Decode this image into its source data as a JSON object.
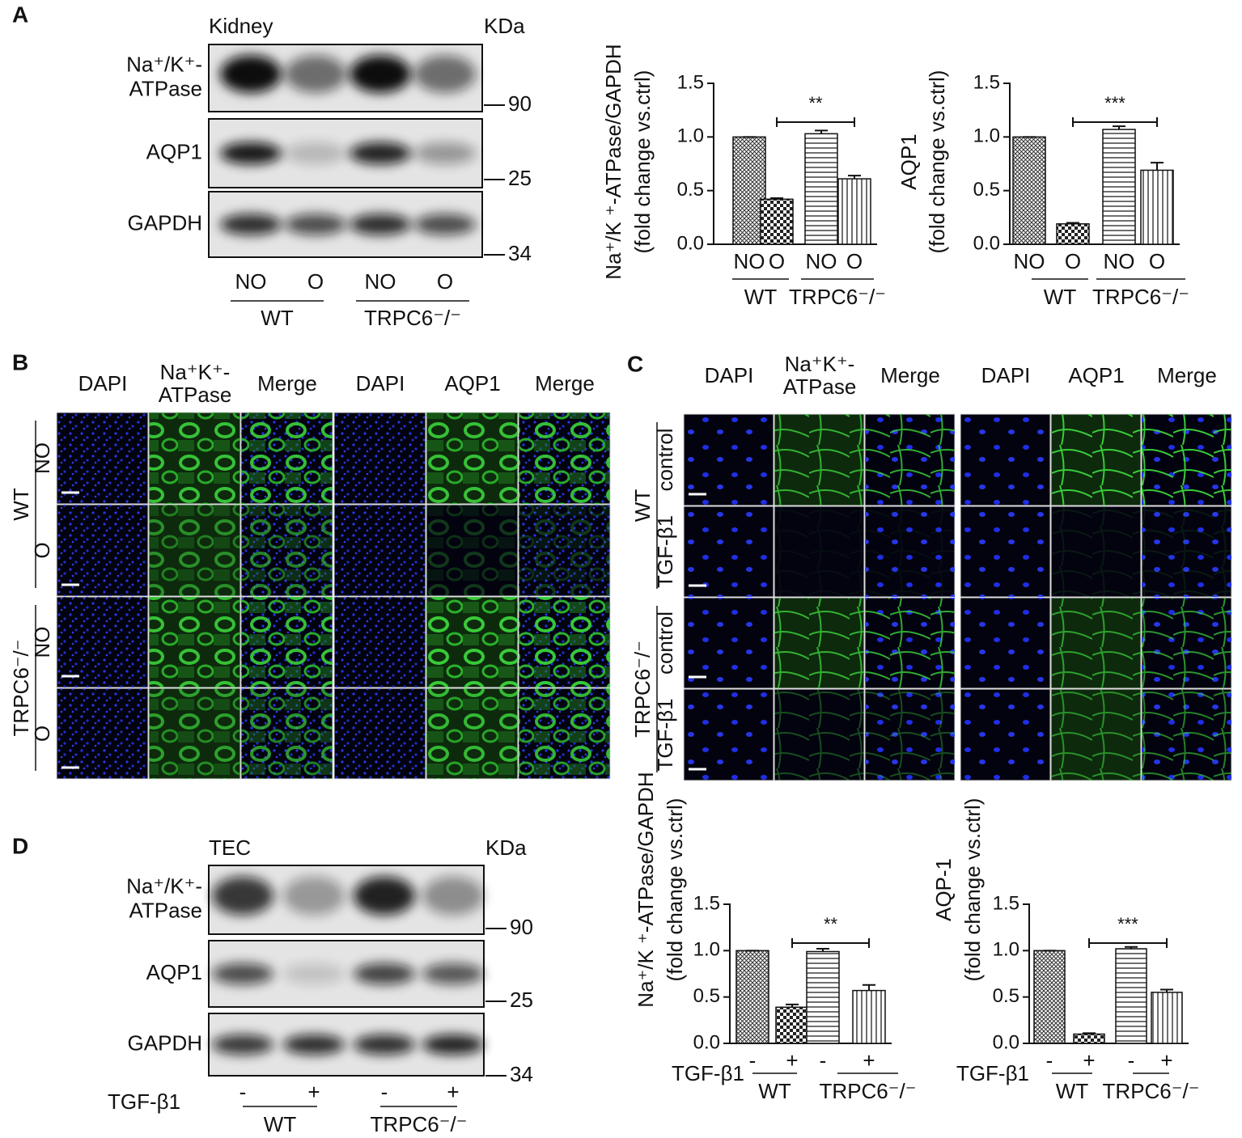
{
  "panel_labels": [
    "A",
    "B",
    "C",
    "D"
  ],
  "blot_a": {
    "sample": "Kidney",
    "unit": "KDa",
    "rows": [
      [
        "Na⁺/K⁺-",
        "ATPase"
      ],
      [
        "AQP1"
      ],
      [
        "GAPDH"
      ]
    ],
    "markers": [
      90,
      25,
      34
    ],
    "lanes": [
      "NO",
      "O",
      "NO",
      "O"
    ],
    "groups": [
      "WT",
      "TRPC6⁻/⁻"
    ]
  },
  "if_b": {
    "columns": [
      "DAPI",
      [
        "Na⁺K⁺-",
        "ATPase"
      ],
      "Merge",
      "DAPI",
      "AQP1",
      "Merge"
    ],
    "groups": [
      {
        "name": "WT",
        "rows": [
          "NO",
          "O"
        ]
      },
      {
        "name": "TRPC6⁻/⁻",
        "rows": [
          "NO",
          "O"
        ]
      }
    ]
  },
  "if_c": {
    "columns": [
      "DAPI",
      [
        "Na⁺K⁺-",
        "ATPase"
      ],
      "Merge",
      "DAPI",
      "AQP1",
      "Merge"
    ],
    "groups": [
      {
        "name": "WT",
        "rows": [
          "control",
          "TGF-β1"
        ]
      },
      {
        "name": "TRPC6⁻/⁻",
        "rows": [
          "control",
          "TGF-β1"
        ]
      }
    ]
  },
  "blot_d": {
    "sample": "TEC",
    "unit": "KDa",
    "rows": [
      [
        "Na⁺/K⁺-",
        "ATPase"
      ],
      [
        "AQP1"
      ],
      [
        "GAPDH"
      ]
    ],
    "markers": [
      90,
      25,
      34
    ],
    "treatment": "TGF-β1",
    "lanes": [
      "-",
      "+",
      "-",
      "+"
    ],
    "groups": [
      "WT",
      "TRPC6⁻/⁻"
    ]
  },
  "chart_data": [
    {
      "type": "bar",
      "ylabel": [
        "Na⁺/K ⁺-ATPase/GAPDH",
        "(fold change vs.ctrl)"
      ],
      "categories": [
        "NO",
        "O",
        "NO",
        "O"
      ],
      "groups": [
        "WT",
        "TRPC6⁻/⁻"
      ],
      "values": [
        1.0,
        0.42,
        1.03,
        0.61
      ],
      "errors": [
        0,
        0.01,
        0.03,
        0.03
      ],
      "significance": "**",
      "ylim": [
        0,
        1.5
      ],
      "yticks": [
        {
          "value": 0,
          "label": "0.0"
        },
        0.5,
        {
          "value": 1,
          "label": "1.0"
        },
        1.5
      ]
    },
    {
      "type": "bar",
      "ylabel": [
        "AQP1",
        "(fold change vs.ctrl)"
      ],
      "categories": [
        "NO",
        "O",
        "NO",
        "O"
      ],
      "groups": [
        "WT",
        "TRPC6⁻/⁻"
      ],
      "values": [
        1.0,
        0.19,
        1.07,
        0.69
      ],
      "errors": [
        0,
        0.01,
        0.03,
        0.07
      ],
      "significance": "***",
      "ylim": [
        0,
        1.5
      ],
      "yticks": [
        {
          "value": 0,
          "label": "0.0"
        },
        0.5,
        {
          "value": 1,
          "label": "1.0"
        },
        1.5
      ]
    },
    {
      "type": "bar",
      "ylabel": [
        "Na⁺/K ⁺-ATPase/GAPDH",
        "(fold change vs.ctrl)"
      ],
      "treatment": "TGF-β1",
      "categories": [
        "-",
        "+",
        "-",
        "+"
      ],
      "groups": [
        "WT",
        "TRPC6⁻/⁻"
      ],
      "values": [
        1.0,
        0.39,
        0.99,
        0.57
      ],
      "errors": [
        0,
        0.03,
        0.03,
        0.06
      ],
      "significance": "**",
      "ylim": [
        0,
        1.5
      ],
      "yticks": [
        {
          "value": 0,
          "label": "0.0"
        },
        0.5,
        {
          "value": 1,
          "label": "1.0"
        },
        1.5
      ]
    },
    {
      "type": "bar",
      "ylabel": [
        "AQP-1",
        "(fold change vs.ctrl)"
      ],
      "treatment": "TGF-β1",
      "categories": [
        "-",
        "+",
        "-",
        "+"
      ],
      "groups": [
        "WT",
        "TRPC6⁻/⁻"
      ],
      "values": [
        1.0,
        0.1,
        1.02,
        0.55
      ],
      "errors": [
        0,
        0.01,
        0.02,
        0.03
      ],
      "significance": "***",
      "ylim": [
        0,
        1.5
      ],
      "yticks": [
        {
          "value": 0,
          "label": "0.0"
        },
        0.5,
        {
          "value": 1,
          "label": "1.0"
        },
        1.5
      ]
    }
  ]
}
